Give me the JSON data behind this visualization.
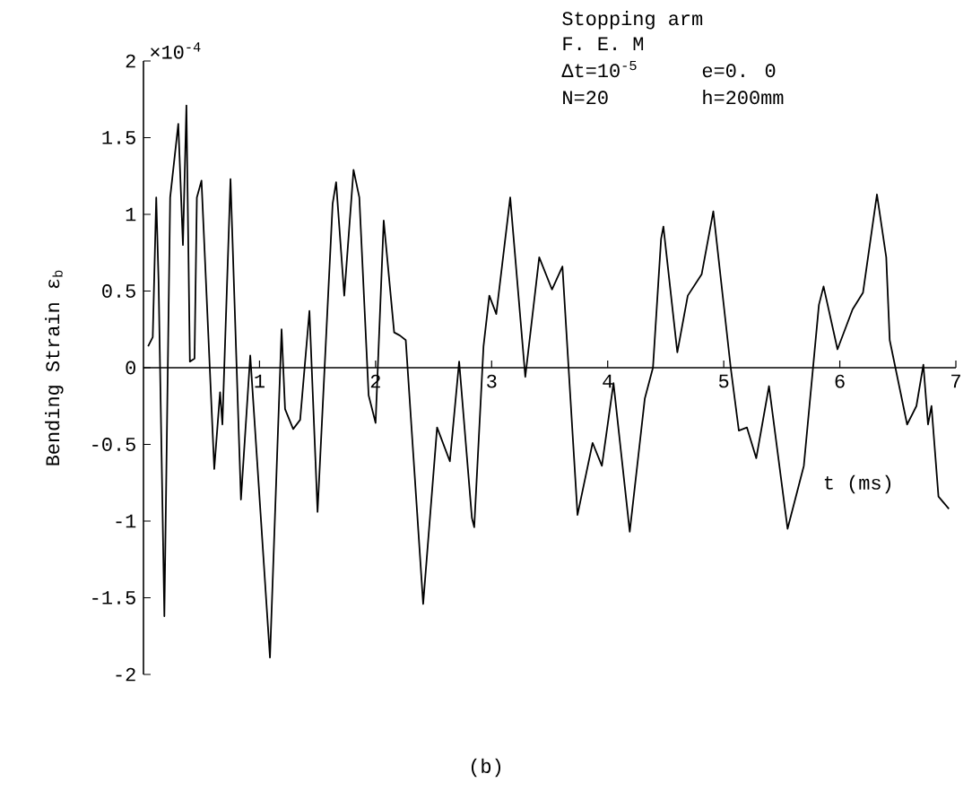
{
  "chart_data": {
    "type": "line",
    "xlabel": "t (ms)",
    "ylabel": "Bending Strain ε$_{b}$",
    "x": [
      0.04,
      0.08,
      0.11,
      0.13,
      0.18,
      0.23,
      0.3,
      0.34,
      0.37,
      0.4,
      0.44,
      0.46,
      0.5,
      0.61,
      0.66,
      0.68,
      0.75,
      0.84,
      0.92,
      1.09,
      1.19,
      1.22,
      1.29,
      1.35,
      1.43,
      1.5,
      1.63,
      1.66,
      1.73,
      1.81,
      1.86,
      1.94,
      2.0,
      2.07,
      2.16,
      2.21,
      2.26,
      2.41,
      2.53,
      2.64,
      2.72,
      2.83,
      2.85,
      2.93,
      2.98,
      3.04,
      3.16,
      3.29,
      3.41,
      3.52,
      3.61,
      3.74,
      3.87,
      3.95,
      4.05,
      4.19,
      4.32,
      4.39,
      4.46,
      4.48,
      4.6,
      4.69,
      4.81,
      4.91,
      5.06,
      5.13,
      5.2,
      5.28,
      5.39,
      5.55,
      5.69,
      5.82,
      5.86,
      5.98,
      6.11,
      6.2,
      6.32,
      6.4,
      6.43,
      6.58,
      6.66,
      6.72,
      6.76,
      6.79,
      6.85,
      6.94
    ],
    "values": [
      0.14,
      0.2,
      1.11,
      0.57,
      -1.62,
      1.11,
      1.59,
      0.8,
      1.71,
      0.04,
      0.06,
      1.11,
      1.22,
      -0.66,
      -0.16,
      -0.37,
      1.23,
      -0.86,
      0.08,
      -1.89,
      0.25,
      -0.27,
      -0.4,
      -0.34,
      0.37,
      -0.94,
      1.07,
      1.21,
      0.47,
      1.29,
      1.11,
      -0.18,
      -0.36,
      0.96,
      0.23,
      0.21,
      0.18,
      -1.54,
      -0.39,
      -0.61,
      0.04,
      -0.98,
      -1.04,
      0.14,
      0.47,
      0.35,
      1.11,
      -0.06,
      0.72,
      0.51,
      0.66,
      -0.96,
      -0.49,
      -0.64,
      -0.1,
      -1.07,
      -0.2,
      0.0,
      0.84,
      0.92,
      0.1,
      0.47,
      0.61,
      1.02,
      0.0,
      -0.41,
      -0.39,
      -0.59,
      -0.12,
      -1.05,
      -0.64,
      0.41,
      0.53,
      0.12,
      0.38,
      0.49,
      1.13,
      0.72,
      0.18,
      -0.37,
      -0.25,
      0.02,
      -0.37,
      -0.25,
      -0.84,
      -0.92
    ],
    "color": "#000000",
    "line_style": "solid",
    "xlim": [
      0,
      7
    ],
    "ylim": [
      -2,
      2
    ],
    "xticks": [
      1,
      2,
      3,
      4,
      5,
      6,
      7
    ],
    "yticks": [
      -2,
      -1.5,
      -1,
      -0.5,
      0,
      0.5,
      1,
      1.5,
      2
    ],
    "annotations": [
      "×10$^{-4}$",
      "Stopping arm",
      "F. E. M",
      "Δt=10$^{-5}$",
      "e=0. 0",
      "N=20",
      "h=200mm",
      "(b)"
    ]
  }
}
